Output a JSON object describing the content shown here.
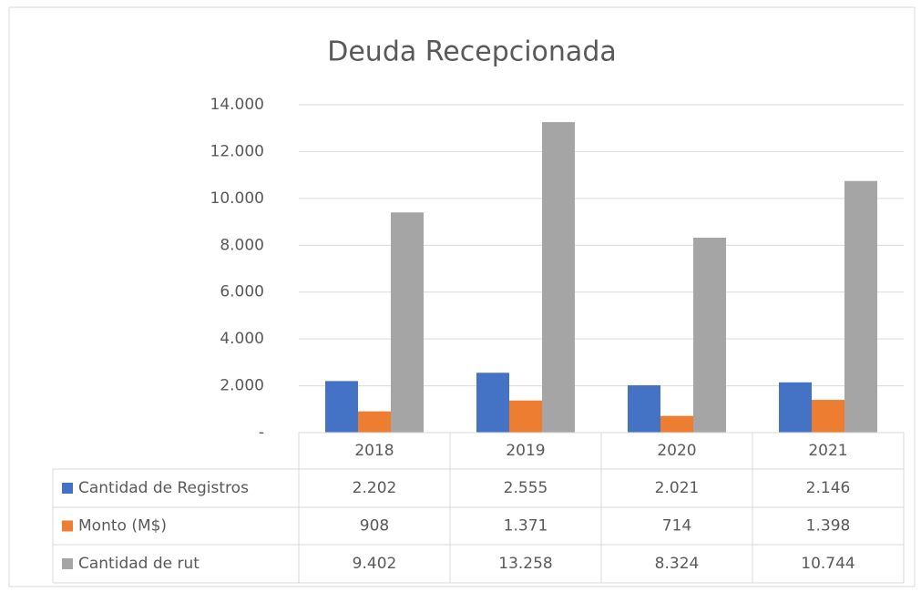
{
  "chart_data": {
    "type": "bar",
    "title": "Deuda Recepcionada",
    "categories": [
      "2018",
      "2019",
      "2020",
      "2021"
    ],
    "series": [
      {
        "name": "Cantidad de Registros",
        "color": "#4472c4",
        "values": [
          2202,
          2555,
          2021,
          2146
        ],
        "value_labels": [
          "2.202",
          "2.555",
          "2.021",
          "2.146"
        ]
      },
      {
        "name": "Monto (M$)",
        "color": "#ed7d31",
        "values": [
          908,
          1371,
          714,
          1398
        ],
        "value_labels": [
          "908",
          "1.371",
          "714",
          "1.398"
        ]
      },
      {
        "name": "Cantidad de rut",
        "color": "#a5a5a5",
        "values": [
          9402,
          13258,
          8324,
          10744
        ],
        "value_labels": [
          "9.402",
          "13.258",
          "8.324",
          "10.744"
        ]
      }
    ],
    "ylim": [
      0,
      14000
    ],
    "yticks": [
      {
        "value": 0,
        "label": "-"
      },
      {
        "value": 2000,
        "label": "2.000"
      },
      {
        "value": 4000,
        "label": "4.000"
      },
      {
        "value": 6000,
        "label": "6.000"
      },
      {
        "value": 8000,
        "label": "8.000"
      },
      {
        "value": 10000,
        "label": "10.000"
      },
      {
        "value": 12000,
        "label": "12.000"
      },
      {
        "value": 14000,
        "label": "14.000"
      }
    ],
    "grid": true
  }
}
